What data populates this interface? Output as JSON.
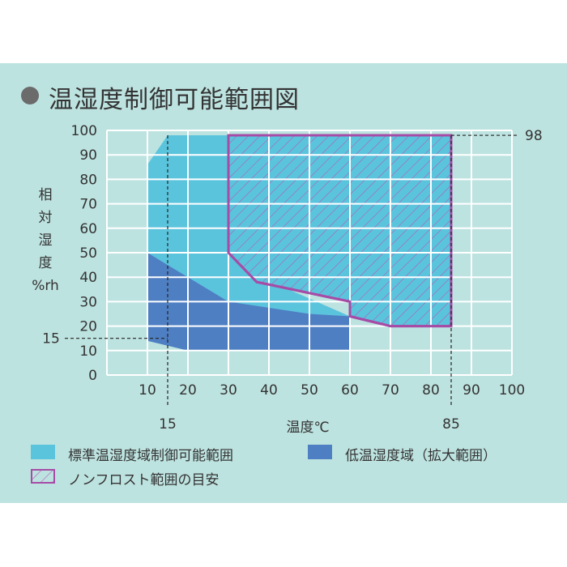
{
  "title": "温湿度制御可能範囲図",
  "chart_data": {
    "type": "area",
    "xlabel": "温度℃",
    "ylabel": [
      "相",
      "対",
      "湿",
      "度",
      "%rh"
    ],
    "xlim": [
      0,
      100
    ],
    "ylim": [
      0,
      100
    ],
    "x_ticks": [
      "10",
      "20",
      "30",
      "40",
      "50",
      "60",
      "70",
      "80",
      "90",
      "100"
    ],
    "y_ticks": [
      "0",
      "10",
      "20",
      "30",
      "40",
      "50",
      "60",
      "70",
      "80",
      "90",
      "100"
    ],
    "grid": true,
    "series": [
      {
        "name": "標準温湿度域制御可能範囲",
        "color": "#5bc4dd",
        "points": [
          [
            10,
            14
          ],
          [
            10,
            86
          ],
          [
            15,
            98
          ],
          [
            30,
            98
          ],
          [
            30,
            52
          ],
          [
            38,
            40
          ],
          [
            60,
            24
          ],
          [
            60,
            10
          ],
          [
            20,
            10
          ]
        ]
      },
      {
        "name": "低温湿度域（拡大範囲）",
        "color": "#4f7fc3",
        "points": [
          [
            10,
            14
          ],
          [
            10,
            50
          ],
          [
            20,
            40
          ],
          [
            30,
            30
          ],
          [
            50,
            25
          ],
          [
            60,
            24
          ],
          [
            60,
            10
          ],
          [
            20,
            10
          ]
        ]
      },
      {
        "name": "ノンフロスト範囲の目安",
        "color": "#a64ca6",
        "style": "hatched",
        "points": [
          [
            30,
            98
          ],
          [
            85,
            98
          ],
          [
            85,
            20
          ],
          [
            70,
            20
          ],
          [
            60,
            24
          ],
          [
            60,
            30
          ],
          [
            40,
            37
          ],
          [
            37,
            38
          ],
          [
            30,
            50
          ]
        ]
      }
    ],
    "annotations": [
      {
        "label": "98",
        "axis": "y",
        "value": 98,
        "side": "right"
      },
      {
        "label": "15",
        "axis": "y",
        "value": 15,
        "side": "left"
      },
      {
        "label": "15",
        "axis": "x",
        "value": 15,
        "side": "bottom"
      },
      {
        "label": "85",
        "axis": "x",
        "value": 85,
        "side": "bottom"
      }
    ]
  },
  "legend": {
    "standard": "標準温湿度域制御可能範囲",
    "low": "低温湿度域（拡大範囲）",
    "nonfrost": "ノンフロスト範囲の目安"
  }
}
